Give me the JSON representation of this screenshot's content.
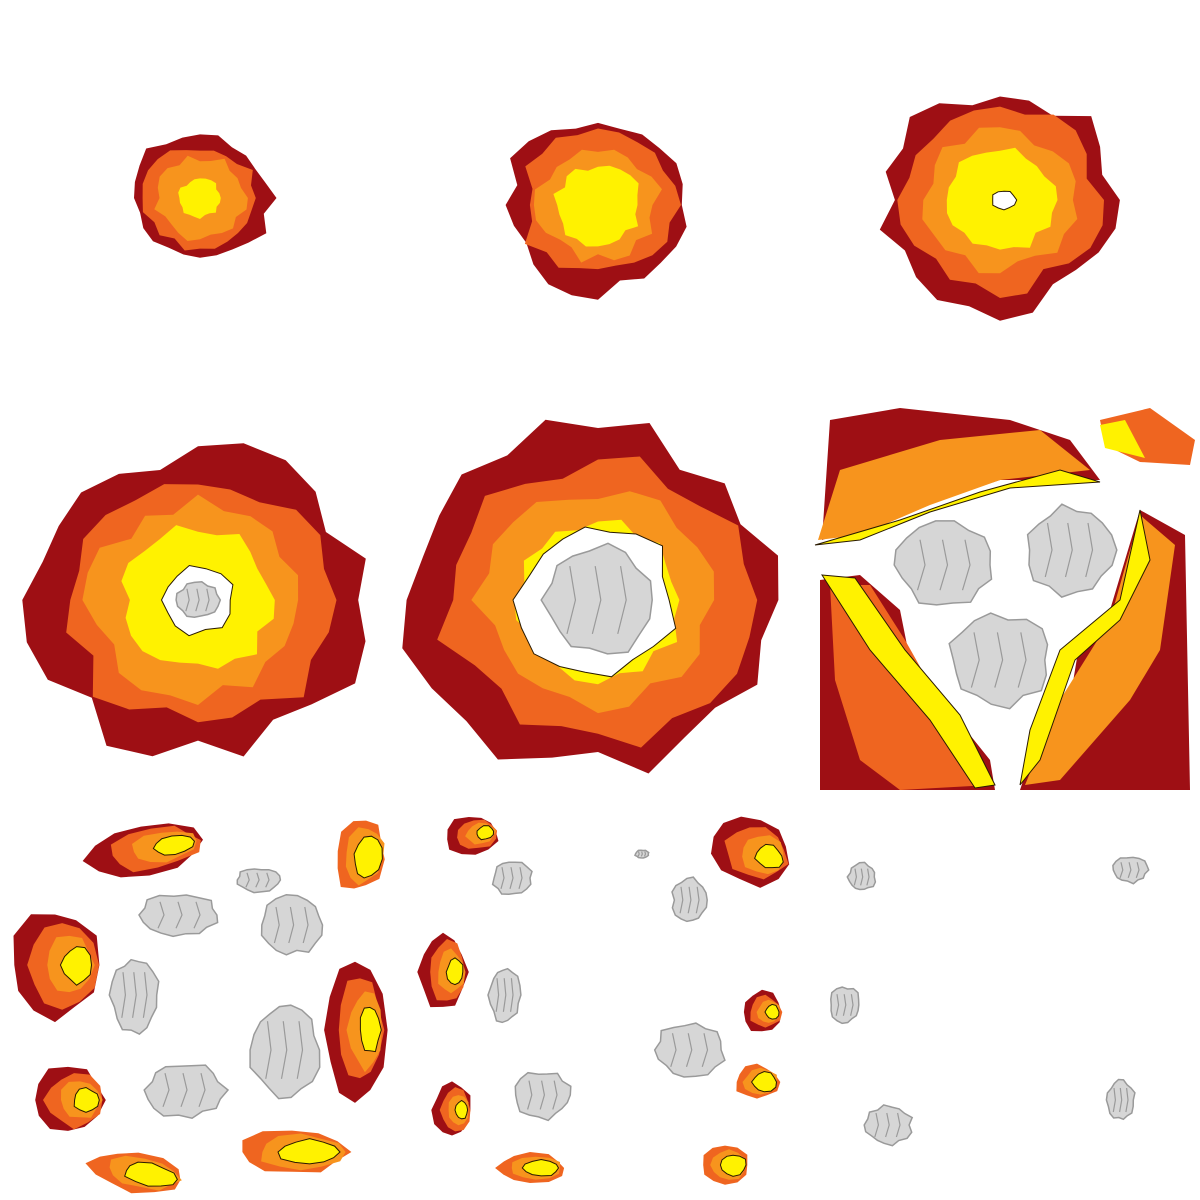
{
  "sheet": {
    "title": "",
    "frame_count": 9,
    "grid": "3x3",
    "background": "#ffffff"
  },
  "palette": {
    "outer": "#9e0f14",
    "dark_orange": "#ef6520",
    "orange": "#f7941d",
    "yellow": "#fff200",
    "smoke_fill": "#d6d6d6",
    "smoke_line": "#9a9a9a",
    "edge": "#2a1a00"
  },
  "frames": [
    {
      "name": "frame-1",
      "stage": "spark",
      "scale": 0.36,
      "core": "none"
    },
    {
      "name": "frame-2",
      "stage": "flash",
      "scale": 0.48,
      "core": "none"
    },
    {
      "name": "frame-3",
      "stage": "fireball",
      "scale": 0.6,
      "core": "hole"
    },
    {
      "name": "frame-4",
      "stage": "fireball-smoke",
      "scale": 0.86,
      "core": "small-smoke"
    },
    {
      "name": "frame-5",
      "stage": "peak",
      "scale": 0.95,
      "core": "large-smoke"
    },
    {
      "name": "frame-6",
      "stage": "break-up",
      "scale": 1.0,
      "core": "split"
    },
    {
      "name": "frame-7",
      "stage": "scatter",
      "scale": 1.0,
      "core": "debris"
    },
    {
      "name": "frame-8",
      "stage": "fade",
      "scale": 1.0,
      "core": "debris"
    },
    {
      "name": "frame-9",
      "stage": "smoke-only",
      "scale": 1.0,
      "core": "debris"
    }
  ]
}
